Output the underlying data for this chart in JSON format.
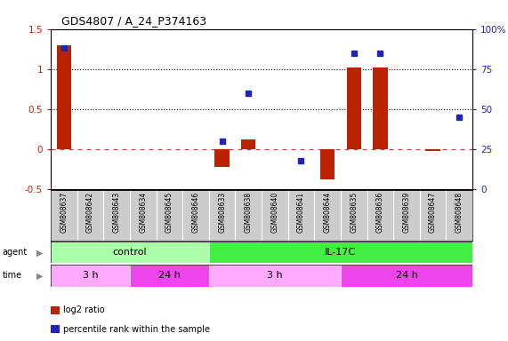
{
  "title": "GDS4807 / A_24_P374163",
  "samples": [
    "GSM808637",
    "GSM808642",
    "GSM808643",
    "GSM808634",
    "GSM808645",
    "GSM808646",
    "GSM808633",
    "GSM808638",
    "GSM808640",
    "GSM808641",
    "GSM808644",
    "GSM808635",
    "GSM808636",
    "GSM808639",
    "GSM808647",
    "GSM808648"
  ],
  "log2_ratio": [
    1.3,
    0.0,
    0.0,
    0.0,
    0.0,
    0.0,
    -0.22,
    0.12,
    0.0,
    0.0,
    -0.38,
    1.02,
    1.02,
    0.0,
    -0.02,
    0.0
  ],
  "percentile": [
    88,
    null,
    null,
    null,
    null,
    null,
    30,
    60,
    null,
    18,
    null,
    85,
    85,
    null,
    null,
    45
  ],
  "ylim_left": [
    -0.5,
    1.5
  ],
  "ylim_right": [
    0,
    100
  ],
  "yticks_left": [
    -0.5,
    0.0,
    0.5,
    1.0,
    1.5
  ],
  "yticks_right": [
    0,
    25,
    50,
    75,
    100
  ],
  "ytick_labels_left": [
    "-0.5",
    "0",
    "0.5",
    "1",
    "1.5"
  ],
  "ytick_labels_right": [
    "0",
    "25",
    "50",
    "75",
    "100%"
  ],
  "hlines": [
    0.5,
    1.0
  ],
  "agent_groups": [
    {
      "label": "control",
      "start": 0,
      "end": 6,
      "color": "#aaffaa"
    },
    {
      "label": "IL-17C",
      "start": 6,
      "end": 16,
      "color": "#44ee44"
    }
  ],
  "time_groups": [
    {
      "label": "3 h",
      "start": 0,
      "end": 3,
      "color": "#ffaaff"
    },
    {
      "label": "24 h",
      "start": 3,
      "end": 6,
      "color": "#ee44ee"
    },
    {
      "label": "3 h",
      "start": 6,
      "end": 11,
      "color": "#ffaaff"
    },
    {
      "label": "24 h",
      "start": 11,
      "end": 16,
      "color": "#ee44ee"
    }
  ],
  "bar_color": "#bb2200",
  "dot_color": "#2222bb",
  "zero_line_color": "#cc4444",
  "background_color": "#ffffff",
  "plot_bg": "#ffffff",
  "grid_color": "#cccccc",
  "sample_bg": "#cccccc",
  "legend_items": [
    {
      "color": "#bb2200",
      "label": "log2 ratio"
    },
    {
      "color": "#2222bb",
      "label": "percentile rank within the sample"
    }
  ]
}
